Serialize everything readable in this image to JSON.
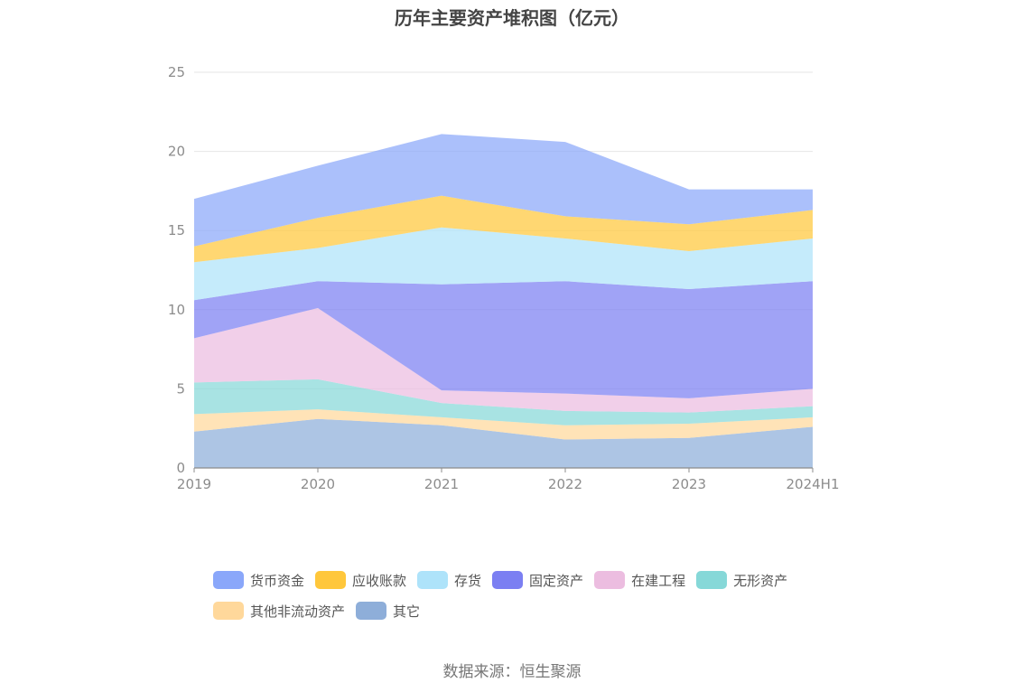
{
  "title": "历年主要资产堆积图（亿元）",
  "source": "数据来源：恒生聚源",
  "chart_data": {
    "type": "area",
    "stacked": true,
    "title": "历年主要资产堆积图（亿元）",
    "xlabel": "",
    "ylabel": "",
    "categories": [
      "2019",
      "2020",
      "2021",
      "2022",
      "2023",
      "2024H1"
    ],
    "ylim": [
      0,
      25
    ],
    "yticks": [
      0,
      5,
      10,
      15,
      20,
      25
    ],
    "grid": true,
    "legend_position": "bottom",
    "series": [
      {
        "name": "其它",
        "color": "#8eaed9",
        "values": [
          2.3,
          3.1,
          2.7,
          1.8,
          1.9,
          2.6
        ]
      },
      {
        "name": "其他非流动资产",
        "color": "#ffd89b",
        "values": [
          1.1,
          0.6,
          0.5,
          0.9,
          0.9,
          0.6
        ]
      },
      {
        "name": "无形资产",
        "color": "#86d8d8",
        "values": [
          2.0,
          1.9,
          0.9,
          0.9,
          0.7,
          0.7
        ]
      },
      {
        "name": "在建工程",
        "color": "#ecbde0",
        "values": [
          2.8,
          4.5,
          0.8,
          1.1,
          0.9,
          1.1
        ]
      },
      {
        "name": "固定资产",
        "color": "#7b7ff2",
        "values": [
          2.4,
          1.7,
          6.7,
          7.1,
          6.9,
          6.8
        ]
      },
      {
        "name": "存货",
        "color": "#aee3fa",
        "values": [
          2.4,
          2.1,
          3.6,
          2.7,
          2.4,
          2.7
        ]
      },
      {
        "name": "应收账款",
        "color": "#ffc73b",
        "values": [
          1.0,
          1.9,
          2.0,
          1.4,
          1.7,
          1.8
        ]
      },
      {
        "name": "货币资金",
        "color": "#8aa7fa",
        "values": [
          3.0,
          3.3,
          3.9,
          4.7,
          2.2,
          1.3
        ]
      }
    ]
  },
  "legend_order": [
    "货币资金",
    "应收账款",
    "存货",
    "固定资产",
    "在建工程",
    "无形资产",
    "其他非流动资产",
    "其它"
  ]
}
